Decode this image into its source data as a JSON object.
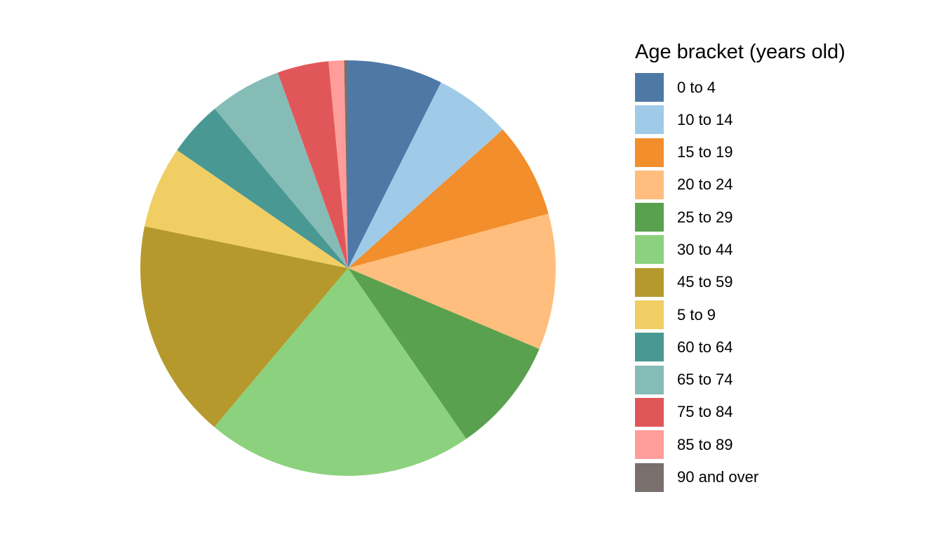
{
  "chart_data": {
    "type": "pie",
    "legend_title": "Age bracket (years old)",
    "legend_position": "right",
    "direction": "clockwise",
    "start_angle_deg": 0,
    "background": "#FFFFFF",
    "categories": [
      "0 to 4",
      "10 to 14",
      "15 to 19",
      "20 to 24",
      "25 to 29",
      "30 to 44",
      "45 to 59",
      "5 to 9",
      "60 to 64",
      "65 to 74",
      "75 to 84",
      "85 to 89",
      "90 and over"
    ],
    "values": [
      7.4,
      6.0,
      7.4,
      10.6,
      9.0,
      20.8,
      17.1,
      6.4,
      4.3,
      5.6,
      4.0,
      1.2,
      0.3
    ],
    "value_unit": "percent (estimated from slice angles)",
    "colors": [
      "#4E79A7",
      "#A0CBE8",
      "#F28E2B",
      "#FFBE7D",
      "#59A14F",
      "#8CD17D",
      "#B6992D",
      "#F1CE63",
      "#499894",
      "#86BCB6",
      "#E15759",
      "#FF9D9A",
      "#79706E"
    ]
  }
}
